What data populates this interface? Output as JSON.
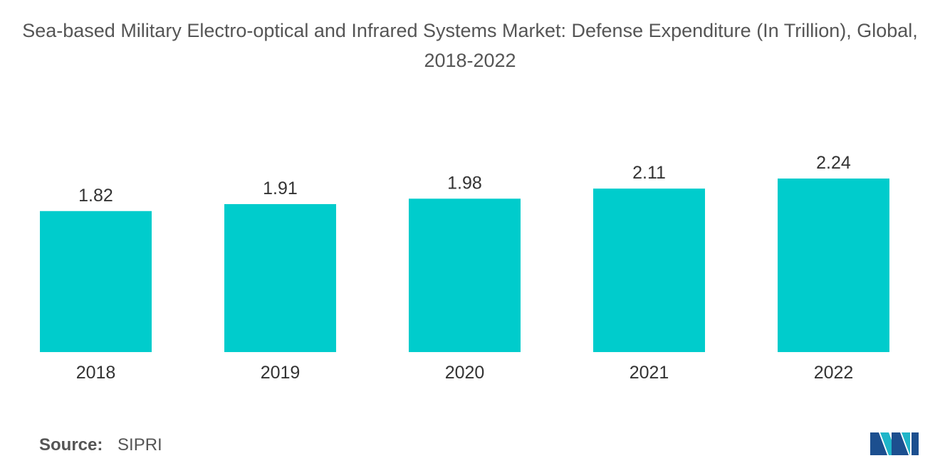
{
  "title": "Sea-based Military Electro-optical and Infrared Systems Market: Defense Expenditure (In Trillion), Global, 2018-2022",
  "source": {
    "label": "Source:",
    "value": "SIPRI"
  },
  "logo": {
    "icon": "mordor-intelligence-logo-icon",
    "colors": [
      "#1c4f8f",
      "#1fb5c9"
    ]
  },
  "colors": {
    "bar": "#00cccc",
    "text": "#333333",
    "title": "#555555"
  },
  "chart_data": {
    "type": "bar",
    "title": "Sea-based Military Electro-optical and Infrared Systems Market: Defense Expenditure (In Trillion), Global, 2018-2022",
    "xlabel": "",
    "ylabel": "",
    "categories": [
      "2018",
      "2019",
      "2020",
      "2021",
      "2022"
    ],
    "values": [
      1.82,
      1.91,
      1.98,
      2.11,
      2.24
    ],
    "data_labels": [
      "1.82",
      "1.91",
      "1.98",
      "2.11",
      "2.24"
    ],
    "ylim": [
      0,
      2.24
    ],
    "grid": false,
    "legend": "none"
  }
}
